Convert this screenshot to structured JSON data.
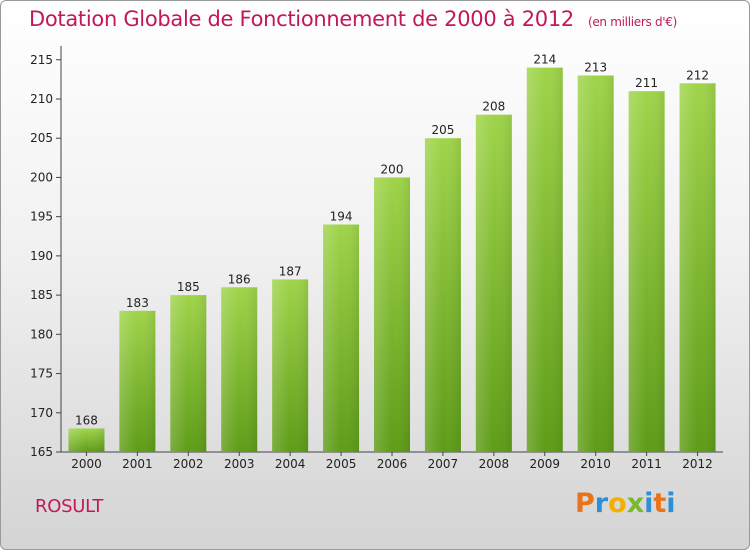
{
  "title": "Dotation Globale de Fonctionnement de 2000 à 2012",
  "subtitle": "(en milliers d'€)",
  "commune": "ROSULT",
  "logo": {
    "text": "Proxiti",
    "letters": [
      "P",
      "r",
      "o",
      "x",
      "i",
      "t",
      "i"
    ],
    "colors": [
      "#e8731b",
      "#2d8fd5",
      "#f2b000",
      "#7cb82f",
      "#2d8fd5",
      "#e8731b",
      "#2d8fd5"
    ]
  },
  "colors": {
    "accent": "#c2185b",
    "bar_top": "#9fd44a",
    "bar_bottom": "#5e9c17"
  },
  "chart_data": {
    "type": "bar",
    "categories": [
      "2000",
      "2001",
      "2002",
      "2003",
      "2004",
      "2005",
      "2006",
      "2007",
      "2008",
      "2009",
      "2010",
      "2011",
      "2012"
    ],
    "values": [
      168,
      183,
      185,
      186,
      187,
      194,
      200,
      205,
      208,
      214,
      213,
      211,
      212
    ],
    "yticks": [
      165,
      170,
      175,
      180,
      185,
      190,
      195,
      200,
      205,
      210,
      215
    ],
    "ylim": [
      165,
      216.5
    ],
    "grid": false,
    "xlabel": "",
    "ylabel": ""
  }
}
